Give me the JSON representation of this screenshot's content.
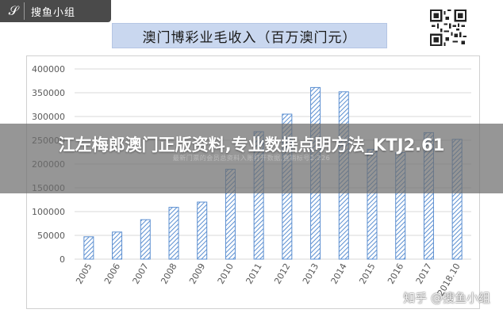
{
  "logo": {
    "mark": "𝒮",
    "text": "搜鱼小组"
  },
  "overlay": {
    "title": "江左梅郎澳门正版资料,专业数据点明方法_KTJ2.61",
    "subtitle": "最新门票的会员总资料入账打开数据,直销标号2.226"
  },
  "watermark": {
    "text": "知乎 @搜鱼小组"
  },
  "colors": {
    "bar_stroke": "#5b8fd1",
    "hatch": "#5b8fd1",
    "grid": "#d9d9d9",
    "axis_text": "#595959",
    "title_bg": "#c9d7ef"
  },
  "chart_data": {
    "type": "bar",
    "title": "澳门博彩业毛收入（百万澳门元）",
    "categories": [
      "2005",
      "2006",
      "2007",
      "2008",
      "2009",
      "2010",
      "2011",
      "2012",
      "2013",
      "2014",
      "2015",
      "2016",
      "2017",
      "2018.10"
    ],
    "values": [
      47000,
      57000,
      83000,
      109000,
      120000,
      189000,
      268000,
      305000,
      361000,
      352000,
      231000,
      224000,
      266000,
      252000
    ],
    "yticks": [
      "0",
      "50000",
      "100000",
      "150000",
      "200000",
      "250000",
      "300000",
      "350000",
      "400000"
    ],
    "ylim": [
      0,
      400000
    ],
    "xlabel": "",
    "ylabel": "",
    "grid": true,
    "bar_fill": "diagonal-hatch"
  }
}
